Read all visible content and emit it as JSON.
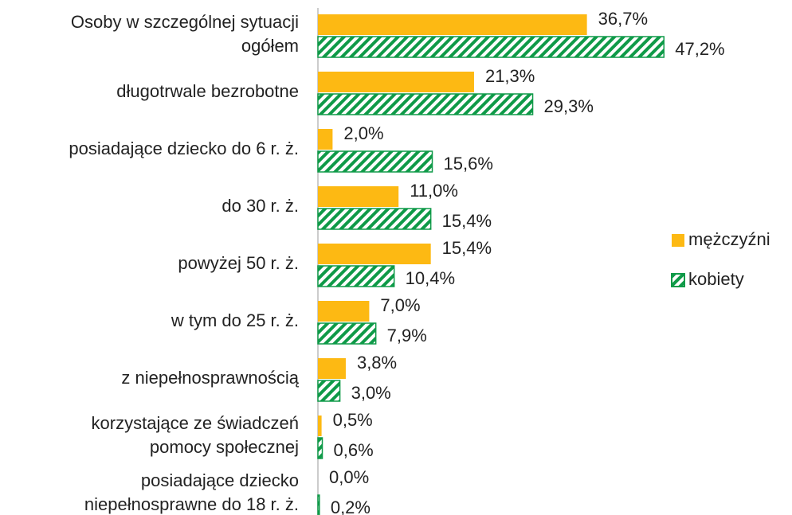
{
  "chart_data": {
    "type": "barh",
    "categories": [
      "Osoby w szczególnej sytuacji\nogółem",
      "długotrwale bezrobotne",
      "posiadające dziecko do 6 r. ż.",
      "do 30 r. ż.",
      "powyżej 50 r. ż.",
      "w tym do 25 r. ż.",
      "z niepełnosprawnością",
      "korzystające ze świadczeń\npomocy społecznej",
      "posiadające dziecko\nniepełnosprawne do 18 r. ż."
    ],
    "series": [
      {
        "name": "mężczyźni",
        "color": "#fdb913",
        "pattern": "solid",
        "values": [
          36.7,
          21.3,
          2.0,
          11.0,
          15.4,
          7.0,
          3.8,
          0.5,
          0.0
        ],
        "value_labels": [
          "36,7%",
          "21,3%",
          "2,0%",
          "11,0%",
          "15,4%",
          "7,0%",
          "3,8%",
          "0,5%",
          "0,0%"
        ]
      },
      {
        "name": "kobiety",
        "color": "#0f9a48",
        "pattern": "stripes",
        "values": [
          47.2,
          29.3,
          15.6,
          15.4,
          10.4,
          7.9,
          3.0,
          0.6,
          0.2
        ],
        "value_labels": [
          "47,2%",
          "29,3%",
          "15,6%",
          "15,4%",
          "10,4%",
          "7,9%",
          "3,0%",
          "0,6%",
          "0,2%"
        ]
      }
    ],
    "xlim": [
      0,
      50
    ],
    "legend": "right"
  }
}
